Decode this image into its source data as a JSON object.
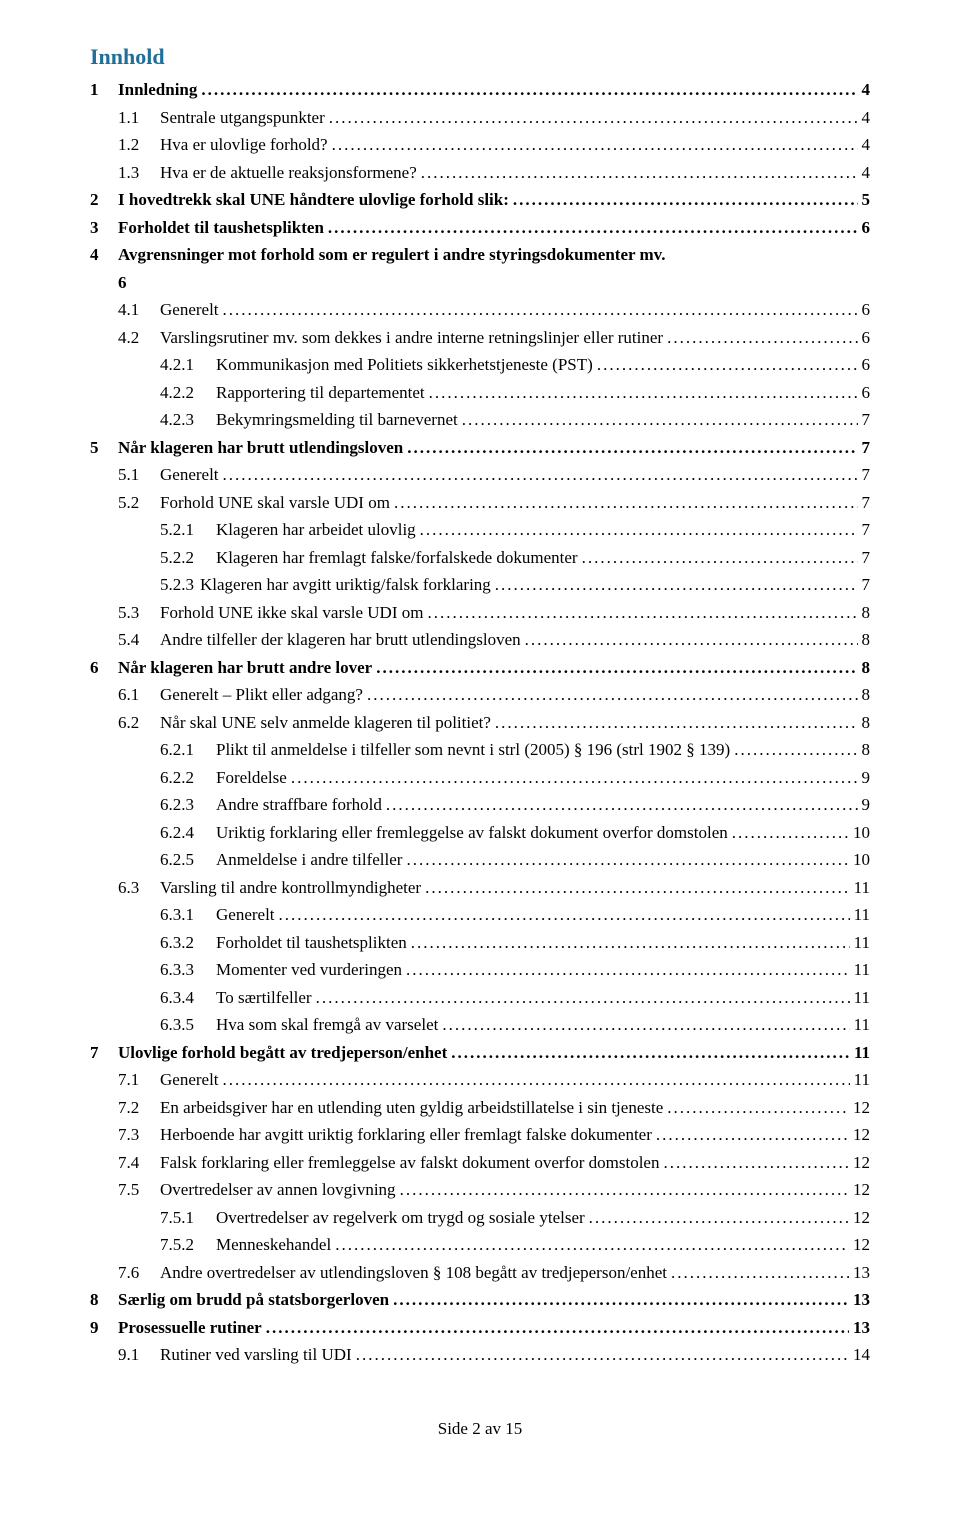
{
  "title": "Innhold",
  "footer": "Side 2 av 15",
  "colors": {
    "title": "#1f6f99",
    "text": "#000000",
    "background": "#ffffff"
  },
  "entries": [
    {
      "level": 1,
      "num": "1",
      "text": "Innledning",
      "page": "4"
    },
    {
      "level": 2,
      "num": "1.1",
      "text": "Sentrale utgangspunkter",
      "page": "4"
    },
    {
      "level": 2,
      "num": "1.2",
      "text": "Hva er ulovlige forhold?",
      "page": "4"
    },
    {
      "level": 2,
      "num": "1.3",
      "text": "Hva er de aktuelle reaksjonsformene?",
      "page": "4"
    },
    {
      "level": 1,
      "num": "2",
      "text": "I hovedtrekk skal UNE håndtere ulovlige forhold slik:",
      "page": "5"
    },
    {
      "level": 1,
      "num": "3",
      "text": "Forholdet til taushetsplikten",
      "page": "6"
    },
    {
      "level": 1,
      "num": "4",
      "text": "Avgrensninger mot forhold som er regulert i andre styringsdokumenter mv.",
      "page": "6",
      "wrap": true
    },
    {
      "level": 2,
      "num": "4.1",
      "text": "Generelt",
      "page": "6"
    },
    {
      "level": 2,
      "num": "4.2",
      "text": "Varslingsrutiner mv. som dekkes i andre interne retningslinjer eller rutiner",
      "page": "6"
    },
    {
      "level": 3,
      "num": "4.2.1",
      "text": "Kommunikasjon med Politiets sikkerhetstjeneste (PST)",
      "page": "6"
    },
    {
      "level": 3,
      "num": "4.2.2",
      "text": "Rapportering til departementet",
      "page": "6"
    },
    {
      "level": 3,
      "num": "4.2.3",
      "text": "Bekymringsmelding til barnevernet",
      "page": "7"
    },
    {
      "level": 1,
      "num": "5",
      "text": "Når klageren har brutt utlendingsloven",
      "page": "7"
    },
    {
      "level": 2,
      "num": "5.1",
      "text": "Generelt",
      "page": "7"
    },
    {
      "level": 2,
      "num": "5.2",
      "text": "Forhold UNE skal varsle UDI om",
      "page": "7"
    },
    {
      "level": 3,
      "num": "5.2.1",
      "text": "Klageren har arbeidet ulovlig",
      "page": "7"
    },
    {
      "level": 3,
      "num": "5.2.2",
      "text": "Klageren har fremlagt falske/forfalskede dokumenter",
      "page": "7"
    },
    {
      "level": 3,
      "num": "5.2.3",
      "text": "Klageren har avgitt uriktig/falsk forklaring",
      "page": "7",
      "tight": true
    },
    {
      "level": 2,
      "num": "5.3",
      "text": "Forhold UNE ikke skal varsle UDI om",
      "page": "8"
    },
    {
      "level": 2,
      "num": "5.4",
      "text": "Andre tilfeller der klageren har brutt utlendingsloven",
      "page": "8"
    },
    {
      "level": 1,
      "num": "6",
      "text": "Når klageren har brutt andre lover",
      "page": "8"
    },
    {
      "level": 2,
      "num": "6.1",
      "text": "Generelt – Plikt eller adgang?",
      "page": "8"
    },
    {
      "level": 2,
      "num": "6.2",
      "text": "Når skal UNE selv anmelde klageren til politiet?",
      "page": "8"
    },
    {
      "level": 3,
      "num": "6.2.1",
      "text": "Plikt til anmeldelse i tilfeller som nevnt i strl (2005) § 196 (strl 1902 § 139)",
      "page": "8"
    },
    {
      "level": 3,
      "num": "6.2.2",
      "text": "Foreldelse",
      "page": "9"
    },
    {
      "level": 3,
      "num": "6.2.3",
      "text": "Andre straffbare forhold",
      "page": "9"
    },
    {
      "level": 3,
      "num": "6.2.4",
      "text": "Uriktig forklaring eller fremleggelse av falskt dokument overfor domstolen",
      "page": "10"
    },
    {
      "level": 3,
      "num": "6.2.5",
      "text": "Anmeldelse i andre tilfeller",
      "page": "10"
    },
    {
      "level": 2,
      "num": "6.3",
      "text": "Varsling til andre kontrollmyndigheter",
      "page": "11"
    },
    {
      "level": 3,
      "num": "6.3.1",
      "text": "Generelt",
      "page": "11"
    },
    {
      "level": 3,
      "num": "6.3.2",
      "text": "Forholdet til taushetsplikten",
      "page": "11"
    },
    {
      "level": 3,
      "num": "6.3.3",
      "text": "Momenter ved vurderingen",
      "page": "11"
    },
    {
      "level": 3,
      "num": "6.3.4",
      "text": "To særtilfeller",
      "page": "11"
    },
    {
      "level": 3,
      "num": "6.3.5",
      "text": "Hva som skal fremgå av varselet",
      "page": "11"
    },
    {
      "level": 1,
      "num": "7",
      "text": "Ulovlige forhold begått av tredjeperson/enhet",
      "page": "11"
    },
    {
      "level": 2,
      "num": "7.1",
      "text": "Generelt",
      "page": "11"
    },
    {
      "level": 2,
      "num": "7.2",
      "text": "En arbeidsgiver har en utlending uten gyldig arbeidstillatelse i sin tjeneste",
      "page": "12"
    },
    {
      "level": 2,
      "num": "7.3",
      "text": "Herboende har avgitt uriktig forklaring eller fremlagt falske dokumenter",
      "page": "12"
    },
    {
      "level": 2,
      "num": "7.4",
      "text": "Falsk forklaring eller fremleggelse av falskt dokument overfor domstolen",
      "page": "12"
    },
    {
      "level": 2,
      "num": "7.5",
      "text": "Overtredelser av annen lovgivning",
      "page": "12"
    },
    {
      "level": 3,
      "num": "7.5.1",
      "text": "Overtredelser av regelverk om trygd og sosiale ytelser",
      "page": "12"
    },
    {
      "level": 3,
      "num": "7.5.2",
      "text": "Menneskehandel",
      "page": "12"
    },
    {
      "level": 2,
      "num": "7.6",
      "text": "Andre overtredelser av utlendingsloven § 108 begått av tredjeperson/enhet",
      "page": "13"
    },
    {
      "level": 1,
      "num": "8",
      "text": "Særlig om brudd på statsborgerloven",
      "page": "13"
    },
    {
      "level": 1,
      "num": "9",
      "text": "Prosessuelle rutiner",
      "page": "13"
    },
    {
      "level": 2,
      "num": "9.1",
      "text": "Rutiner ved varsling til UDI",
      "page": "14"
    }
  ]
}
